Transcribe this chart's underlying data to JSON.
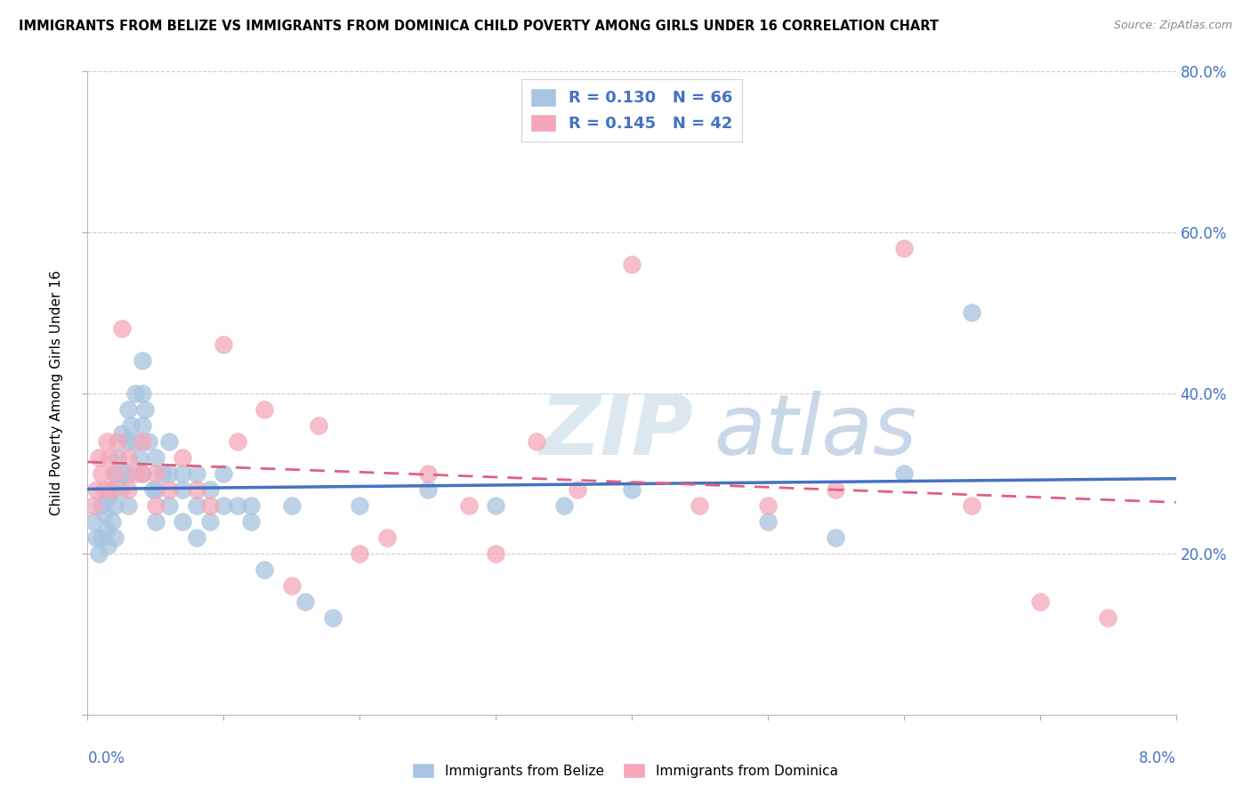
{
  "title": "IMMIGRANTS FROM BELIZE VS IMMIGRANTS FROM DOMINICA CHILD POVERTY AMONG GIRLS UNDER 16 CORRELATION CHART",
  "source": "Source: ZipAtlas.com",
  "ylabel": "Child Poverty Among Girls Under 16",
  "R_belize": 0.13,
  "N_belize": 66,
  "R_dominica": 0.145,
  "N_dominica": 42,
  "color_belize": "#a8c4e0",
  "color_dominica": "#f4a7b9",
  "trendline_belize": "#4472c4",
  "trendline_dominica": "#e06080",
  "watermark_color": "#c8d8e8",
  "xlim": [
    0.0,
    0.08
  ],
  "ylim": [
    0.0,
    0.8
  ],
  "belize_x": [
    0.0004,
    0.0006,
    0.0008,
    0.001,
    0.001,
    0.0012,
    0.0014,
    0.0015,
    0.0015,
    0.0016,
    0.0018,
    0.002,
    0.002,
    0.002,
    0.0022,
    0.0024,
    0.0025,
    0.0025,
    0.003,
    0.003,
    0.003,
    0.003,
    0.0032,
    0.0035,
    0.0035,
    0.0038,
    0.004,
    0.004,
    0.004,
    0.004,
    0.0042,
    0.0045,
    0.0048,
    0.005,
    0.005,
    0.005,
    0.0055,
    0.006,
    0.006,
    0.006,
    0.007,
    0.007,
    0.007,
    0.008,
    0.008,
    0.008,
    0.009,
    0.009,
    0.01,
    0.01,
    0.011,
    0.012,
    0.012,
    0.013,
    0.015,
    0.016,
    0.018,
    0.02,
    0.025,
    0.03,
    0.035,
    0.04,
    0.05,
    0.055,
    0.06,
    0.065
  ],
  "belize_y": [
    0.24,
    0.22,
    0.2,
    0.26,
    0.22,
    0.25,
    0.23,
    0.27,
    0.21,
    0.28,
    0.24,
    0.3,
    0.26,
    0.22,
    0.32,
    0.28,
    0.35,
    0.3,
    0.38,
    0.34,
    0.3,
    0.26,
    0.36,
    0.4,
    0.34,
    0.32,
    0.44,
    0.4,
    0.36,
    0.3,
    0.38,
    0.34,
    0.28,
    0.32,
    0.28,
    0.24,
    0.3,
    0.34,
    0.3,
    0.26,
    0.3,
    0.28,
    0.24,
    0.3,
    0.26,
    0.22,
    0.28,
    0.24,
    0.26,
    0.3,
    0.26,
    0.24,
    0.26,
    0.18,
    0.26,
    0.14,
    0.12,
    0.26,
    0.28,
    0.26,
    0.26,
    0.28,
    0.24,
    0.22,
    0.3,
    0.5
  ],
  "dominica_x": [
    0.0004,
    0.0006,
    0.0008,
    0.001,
    0.0012,
    0.0014,
    0.0016,
    0.0018,
    0.002,
    0.0022,
    0.0025,
    0.003,
    0.003,
    0.0035,
    0.004,
    0.004,
    0.005,
    0.005,
    0.006,
    0.007,
    0.008,
    0.009,
    0.01,
    0.011,
    0.013,
    0.015,
    0.017,
    0.02,
    0.022,
    0.025,
    0.028,
    0.03,
    0.033,
    0.036,
    0.04,
    0.045,
    0.05,
    0.055,
    0.06,
    0.065,
    0.07,
    0.075
  ],
  "dominica_y": [
    0.26,
    0.28,
    0.32,
    0.3,
    0.28,
    0.34,
    0.32,
    0.28,
    0.3,
    0.34,
    0.48,
    0.32,
    0.28,
    0.3,
    0.34,
    0.3,
    0.3,
    0.26,
    0.28,
    0.32,
    0.28,
    0.26,
    0.46,
    0.34,
    0.38,
    0.16,
    0.36,
    0.2,
    0.22,
    0.3,
    0.26,
    0.2,
    0.34,
    0.28,
    0.56,
    0.26,
    0.26,
    0.28,
    0.58,
    0.26,
    0.14,
    0.12
  ]
}
